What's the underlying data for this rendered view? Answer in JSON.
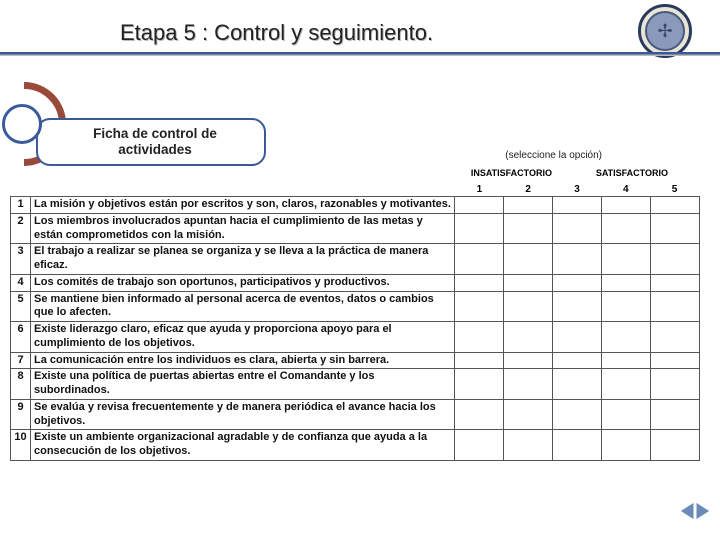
{
  "title": "Etapa 5 : Control y seguimiento.",
  "ficha_label": "Ficha  de control de actividades",
  "select_hint": "(seleccione la opción)",
  "scale_left": "INSATISFACTORIO",
  "scale_right": "SATISFACTORIO",
  "columns": [
    "1",
    "2",
    "3",
    "4",
    "5"
  ],
  "rows": [
    {
      "n": "1",
      "text": "La misión y objetivos están por escritos y son, claros, razonables y motivantes."
    },
    {
      "n": "2",
      "text": "Los miembros involucrados apuntan hacia el cumplimiento de las metas y están comprometidos con la misión."
    },
    {
      "n": "3",
      "text": "El trabajo a realizar se planea se organiza y se lleva a la práctica de manera eficaz."
    },
    {
      "n": "4",
      "text": "Los comités de trabajo son oportunos, participativos y productivos."
    },
    {
      "n": "5",
      "text": "Se mantiene bien informado al personal acerca de eventos, datos o cambios que lo afecten."
    },
    {
      "n": "6",
      "text": "Existe liderazgo claro, eficaz que ayuda y proporciona apoyo para el cumplimiento de los objetivos."
    },
    {
      "n": "7",
      "text": "La comunicación entre los individuos es clara, abierta y sin barrera."
    },
    {
      "n": "8",
      "text": "Existe una política de puertas abiertas entre el Comandante y los subordinados."
    },
    {
      "n": "9",
      "text": "Se evalúa y revisa frecuentemente y de manera periódica el avance hacia los objetivos."
    },
    {
      "n": "10",
      "text": "Existe un ambiente organizacional agradable y de confianza que ayuda a la consecución de los objetivos."
    }
  ],
  "colors": {
    "accent_blue": "#3a5a9a",
    "arc_red": "#9a4a3a",
    "arrow_fill": "#6a8ab8"
  }
}
